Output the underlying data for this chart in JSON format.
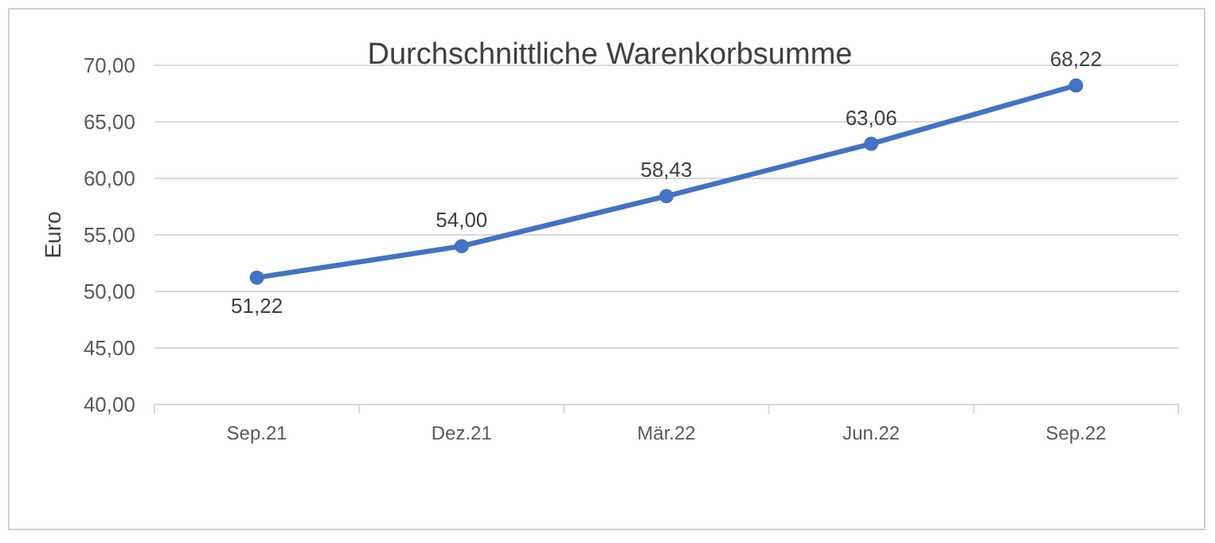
{
  "chart_data": {
    "type": "line",
    "title": "Durchschnittliche Warenkorbsumme",
    "ylabel": "Euro",
    "categories": [
      "Sep.21",
      "Dez.21",
      "Mär.22",
      "Jun.22",
      "Sep.22"
    ],
    "series": [
      {
        "color": "#4472c4",
        "values": [
          51.22,
          54.0,
          58.43,
          63.06,
          68.22
        ],
        "value_labels": [
          "51,22",
          "54,00",
          "58,43",
          "63,06",
          "68,22"
        ]
      }
    ],
    "ylim": [
      40,
      70
    ],
    "yticks": [
      {
        "value": 40,
        "label": "40,00"
      },
      {
        "value": 45,
        "label": "45,00"
      },
      {
        "value": 50,
        "label": "50,00"
      },
      {
        "value": 55,
        "label": "55,00"
      },
      {
        "value": 60,
        "label": "60,00"
      },
      {
        "value": 65,
        "label": "65,00"
      },
      {
        "value": 70,
        "label": "70,00"
      }
    ],
    "grid": "y",
    "marker": "circle",
    "line_style": "solid"
  }
}
